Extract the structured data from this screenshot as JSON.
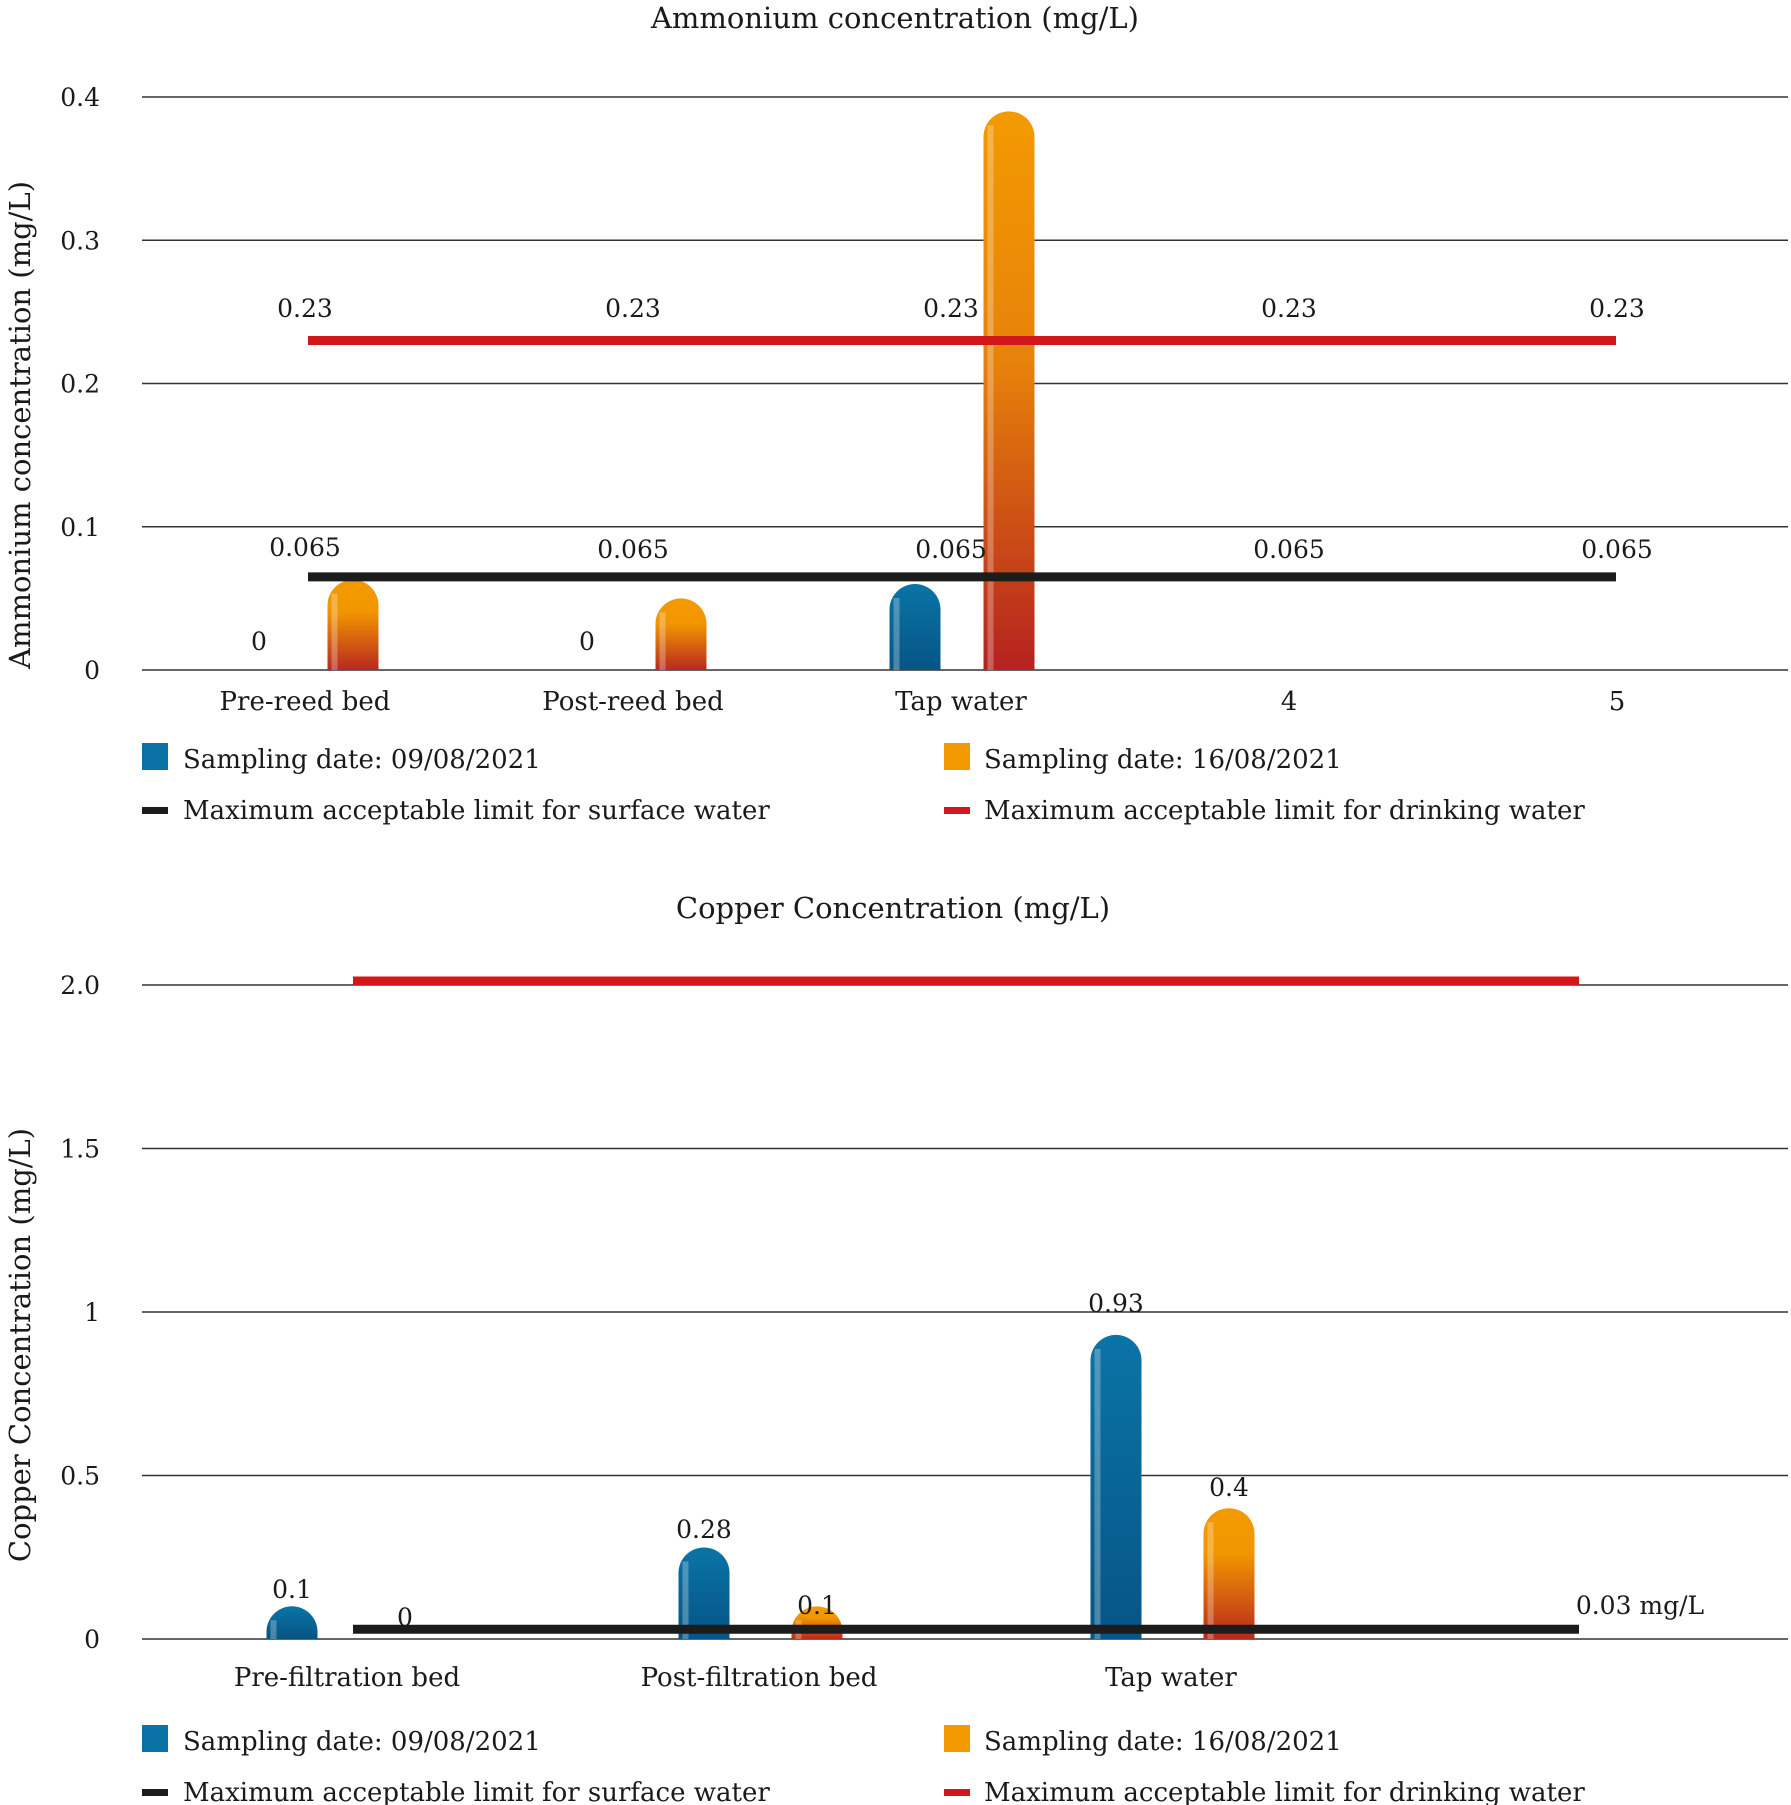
{
  "colors": {
    "series1": "#0a72a4",
    "series1_dark": "#065888",
    "series2_top": "#f39a00",
    "series2_bottom": "#b5221f",
    "surface_limit": "#1c1c1c",
    "drinking_limit": "#d1161c",
    "grid": "#333333",
    "text": "#1a1a1a"
  },
  "chart_data": [
    {
      "type": "bar",
      "title": "Ammonium concentration (mg/L)",
      "xlabel": "",
      "ylabel": "Ammonium concentration (mg/L)",
      "ylim": [
        0,
        0.4
      ],
      "yticks": [
        0,
        0.1,
        0.2,
        0.3,
        0.4
      ],
      "ytick_labels": [
        "0",
        "0.1",
        "0.2",
        "0.3",
        "0.4"
      ],
      "grid": true,
      "categories": [
        "Pre-reed bed",
        "Post-reed bed",
        "Tap water",
        "4",
        "5"
      ],
      "series": [
        {
          "name": "Sampling date: 09/08/2021",
          "kind": "bar",
          "values": [
            0,
            0,
            0.06,
            null,
            null
          ],
          "data_labels": [
            "0",
            "0",
            "",
            "",
            ""
          ]
        },
        {
          "name": "Sampling date: 16/08/2021",
          "kind": "bar",
          "values": [
            0.063,
            0.05,
            0.39,
            null,
            null
          ],
          "data_labels": [
            "",
            "",
            "",
            "",
            ""
          ]
        },
        {
          "name": "Maximum acceptable limit for surface water",
          "kind": "line",
          "values": [
            0.065,
            0.065,
            0.065,
            0.065,
            0.065
          ],
          "data_labels": [
            "0.065",
            "0.065",
            "0.065",
            "0.065",
            "0.065"
          ]
        },
        {
          "name": "Maximum acceptable limit for drinking water",
          "kind": "line",
          "values": [
            0.23,
            0.23,
            0.23,
            0.23,
            0.23
          ],
          "data_labels": [
            "0.23",
            "0.23",
            "0.23",
            "0.23",
            "0.23"
          ]
        }
      ],
      "legend": {
        "placement": "bottom",
        "entries": [
          "Sampling date: 09/08/2021",
          "Sampling date: 16/08/2021",
          "Maximum acceptable limit for surface water",
          "Maximum acceptable limit for drinking water"
        ]
      }
    },
    {
      "type": "bar",
      "title": "Copper Concentration (mg/L)",
      "xlabel": "",
      "ylabel": "Copper Concentration (mg/L)",
      "ylim": [
        0,
        2.0
      ],
      "yticks": [
        0,
        0.5,
        1,
        1.5,
        2.0
      ],
      "ytick_labels": [
        "0",
        "0.5",
        "1",
        "1.5",
        "2.0"
      ],
      "grid": true,
      "categories": [
        "Pre-filtration bed",
        "Post-filtration bed",
        "Tap water",
        ""
      ],
      "series": [
        {
          "name": "Sampling date: 09/08/2021",
          "kind": "bar",
          "values": [
            0.1,
            0.28,
            0.93,
            null
          ],
          "data_labels": [
            "0.1",
            "0.28",
            "0.93",
            ""
          ]
        },
        {
          "name": "Sampling date: 16/08/2021",
          "kind": "bar",
          "values": [
            0,
            0.1,
            0.4,
            null
          ],
          "data_labels": [
            "0",
            "0.1",
            "0.4",
            ""
          ]
        },
        {
          "name": "Maximum acceptable limit for surface water",
          "kind": "line",
          "values": [
            0.03,
            0.03,
            0.03,
            0.03
          ],
          "data_labels": [
            "",
            "",
            "",
            "0.03 mg/L"
          ]
        },
        {
          "name": "Maximum acceptable limit for drinking water",
          "kind": "line",
          "values": [
            2.0,
            2.0,
            2.0,
            2.0
          ],
          "data_labels": [
            "",
            "",
            "",
            ""
          ]
        }
      ],
      "legend": {
        "placement": "bottom",
        "entries": [
          "Sampling date: 09/08/2021",
          "Sampling date: 16/08/2021",
          "Maximum acceptable limit for surface water",
          "Maximum acceptable limit for drinking water"
        ]
      }
    }
  ]
}
